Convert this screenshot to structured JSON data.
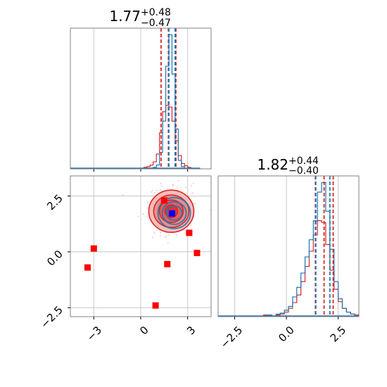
{
  "chart_data": [
    {
      "panel": "top-left",
      "type": "histogram",
      "title": {
        "main": "1.77",
        "plus": "+0.48",
        "minus": "−0.47"
      },
      "xlim": [
        -4.5,
        4.5
      ],
      "bin_centers": [
        0.1,
        0.3,
        0.5,
        0.7,
        0.9,
        1.1,
        1.3,
        1.5,
        1.7,
        1.9,
        2.1,
        2.3,
        2.5,
        2.7,
        2.9,
        3.1,
        3.3,
        3.5,
        3.7
      ],
      "series": [
        {
          "color": "#d62728",
          "counts": [
            0,
            1,
            2,
            4,
            8,
            18,
            45,
            72,
            80,
            78,
            60,
            35,
            16,
            6,
            3,
            1,
            0,
            0,
            0
          ]
        },
        {
          "color": "#1f77b4",
          "counts": [
            0,
            0,
            0,
            0,
            1,
            4,
            20,
            60,
            130,
            170,
            120,
            50,
            10,
            2,
            0,
            0,
            0,
            0,
            0
          ]
        }
      ],
      "vlines": [
        {
          "x": 1.3,
          "color": "#d62728"
        },
        {
          "x": 1.77,
          "color": "#d62728"
        },
        {
          "x": 2.25,
          "color": "#d62728"
        },
        {
          "x": 1.8,
          "color": "#1f77b4"
        },
        {
          "x": 2.2,
          "color": "#1f77b4"
        }
      ],
      "grid": true
    },
    {
      "panel": "bottom-left",
      "type": "scatter",
      "xlim": [
        -4.5,
        4.5
      ],
      "ylim": [
        -2.9,
        3.4
      ],
      "xticks": [
        -3,
        0,
        3
      ],
      "xticklabels": [
        "−3",
        "0",
        "3"
      ],
      "yticks": [
        -2.5,
        0.0,
        2.5
      ],
      "yticklabels": [
        "−2.5",
        "0.0",
        "2.5"
      ],
      "grid": true,
      "red_squares": [
        {
          "x": 1.5,
          "y": 2.3
        },
        {
          "x": 3.1,
          "y": 0.85
        },
        {
          "x": -3.0,
          "y": 0.15
        },
        {
          "x": 3.6,
          "y": -0.05
        },
        {
          "x": -3.4,
          "y": -0.7
        },
        {
          "x": 1.7,
          "y": -0.55
        },
        {
          "x": 0.95,
          "y": -2.4
        }
      ],
      "blue_square": {
        "x": 2.0,
        "y": 1.72
      },
      "red_contours_center": {
        "x": 2.0,
        "y": 1.85
      },
      "blue_contours_center": {
        "x": 2.05,
        "y": 1.8
      }
    },
    {
      "panel": "bottom-right",
      "type": "histogram",
      "title": {
        "main": "1.82",
        "plus": "+0.44",
        "minus": "−0.40"
      },
      "xlim": [
        -3.3,
        3.5
      ],
      "xticks": [
        -2.5,
        0.0,
        2.5
      ],
      "xticklabels": [
        "−2.5",
        "0.0",
        "2.5"
      ],
      "bin_centers": [
        -1.0,
        -0.8,
        -0.6,
        -0.4,
        -0.2,
        0.0,
        0.2,
        0.4,
        0.6,
        0.8,
        1.0,
        1.2,
        1.4,
        1.6,
        1.8,
        2.0,
        2.2,
        2.4,
        2.6,
        2.8,
        3.0,
        3.2,
        3.4
      ],
      "series": [
        {
          "color": "#d62728",
          "counts": [
            1,
            0,
            0,
            1,
            2,
            4,
            8,
            14,
            22,
            36,
            52,
            68,
            85,
            100,
            98,
            75,
            48,
            28,
            15,
            8,
            4,
            2,
            1
          ]
        },
        {
          "color": "#1f77b4",
          "counts": [
            0,
            1,
            0,
            2,
            3,
            6,
            10,
            20,
            30,
            45,
            62,
            80,
            100,
            130,
            140,
            110,
            70,
            36,
            18,
            8,
            4,
            2,
            0
          ]
        }
      ],
      "vlines": [
        {
          "x": 1.4,
          "color": "#d62728"
        },
        {
          "x": 1.82,
          "color": "#d62728"
        },
        {
          "x": 2.26,
          "color": "#d62728"
        },
        {
          "x": 1.42,
          "color": "#1f77b4"
        },
        {
          "x": 2.1,
          "color": "#1f77b4"
        }
      ],
      "grid": true
    }
  ]
}
